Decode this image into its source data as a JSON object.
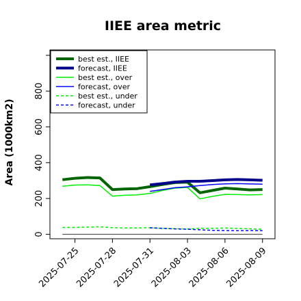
{
  "chart_data": {
    "type": "line",
    "title": "IIEE area metric",
    "xlabel": "",
    "ylabel": "Area (1000km2)",
    "ylim": [
      -25,
      1030
    ],
    "yticks": [
      0,
      200,
      400,
      600,
      800
    ],
    "xlim": [
      "2025-07-23",
      "2025-08-10"
    ],
    "xticks": [
      "2025-07-25",
      "2025-07-28",
      "2025-07-31",
      "2025-08-03",
      "2025-08-06",
      "2025-08-09"
    ],
    "highlight_tick": "2025-07-31",
    "highlight_color": "#228B22",
    "grid": false,
    "legend_position": "top-left",
    "series": [
      {
        "name": "best est., IIEE",
        "color": "#006400",
        "width": 4,
        "dash": "",
        "x": [
          "2025-07-24",
          "2025-07-25",
          "2025-07-26",
          "2025-07-27",
          "2025-07-28",
          "2025-07-29",
          "2025-07-30",
          "2025-07-31",
          "2025-08-01",
          "2025-08-02",
          "2025-08-03",
          "2025-08-04",
          "2025-08-05",
          "2025-08-06",
          "2025-08-07",
          "2025-08-08",
          "2025-08-09"
        ],
        "y": [
          305,
          313,
          317,
          315,
          250,
          253,
          255,
          266,
          278,
          289,
          291,
          232,
          245,
          258,
          253,
          248,
          250
        ]
      },
      {
        "name": "forecast, IIEE",
        "color": "#00008B",
        "width": 4,
        "dash": "",
        "x": [
          "2025-07-31",
          "2025-08-01",
          "2025-08-02",
          "2025-08-03",
          "2025-08-04",
          "2025-08-05",
          "2025-08-06",
          "2025-08-07",
          "2025-08-08",
          "2025-08-09"
        ],
        "y": [
          276,
          283,
          292,
          296,
          296,
          300,
          304,
          306,
          304,
          302
        ]
      },
      {
        "name": "best est., over",
        "color": "#00EE00",
        "width": 1.5,
        "dash": "",
        "x": [
          "2025-07-24",
          "2025-07-25",
          "2025-07-26",
          "2025-07-27",
          "2025-07-28",
          "2025-07-29",
          "2025-07-30",
          "2025-07-31",
          "2025-08-01",
          "2025-08-02",
          "2025-08-03",
          "2025-08-04",
          "2025-08-05",
          "2025-08-06",
          "2025-08-07",
          "2025-08-08",
          "2025-08-09"
        ],
        "y": [
          268,
          275,
          276,
          272,
          213,
          218,
          220,
          228,
          245,
          258,
          262,
          198,
          212,
          223,
          222,
          220,
          222
        ]
      },
      {
        "name": "forecast, over",
        "color": "#0000FF",
        "width": 1.5,
        "dash": "",
        "x": [
          "2025-07-31",
          "2025-08-01",
          "2025-08-02",
          "2025-08-03",
          "2025-08-04",
          "2025-08-05",
          "2025-08-06",
          "2025-08-07",
          "2025-08-08",
          "2025-08-09"
        ],
        "y": [
          240,
          250,
          260,
          265,
          272,
          278,
          282,
          283,
          281,
          280
        ]
      },
      {
        "name": "best est., under",
        "color": "#00EE00",
        "width": 1.5,
        "dash": "4,3",
        "x": [
          "2025-07-24",
          "2025-07-25",
          "2025-07-26",
          "2025-07-27",
          "2025-07-28",
          "2025-07-29",
          "2025-07-30",
          "2025-07-31",
          "2025-08-01",
          "2025-08-02",
          "2025-08-03",
          "2025-08-04",
          "2025-08-05",
          "2025-08-06",
          "2025-08-07",
          "2025-08-08",
          "2025-08-09"
        ],
        "y": [
          38,
          38,
          40,
          42,
          37,
          35,
          35,
          37,
          33,
          31,
          29,
          34,
          33,
          35,
          33,
          30,
          28
        ]
      },
      {
        "name": "forecast, under",
        "color": "#0000FF",
        "width": 1.5,
        "dash": "4,3",
        "x": [
          "2025-07-31",
          "2025-08-01",
          "2025-08-02",
          "2025-08-03",
          "2025-08-04",
          "2025-08-05",
          "2025-08-06",
          "2025-08-07",
          "2025-08-08",
          "2025-08-09"
        ],
        "y": [
          36,
          33,
          30,
          28,
          25,
          22,
          21,
          20,
          21,
          20
        ]
      },
      {
        "name": "",
        "color": "#555555",
        "width": 1.2,
        "dash": "",
        "x": [
          "2025-07-24",
          "2025-08-09"
        ],
        "y": [
          0,
          0
        ]
      }
    ]
  }
}
